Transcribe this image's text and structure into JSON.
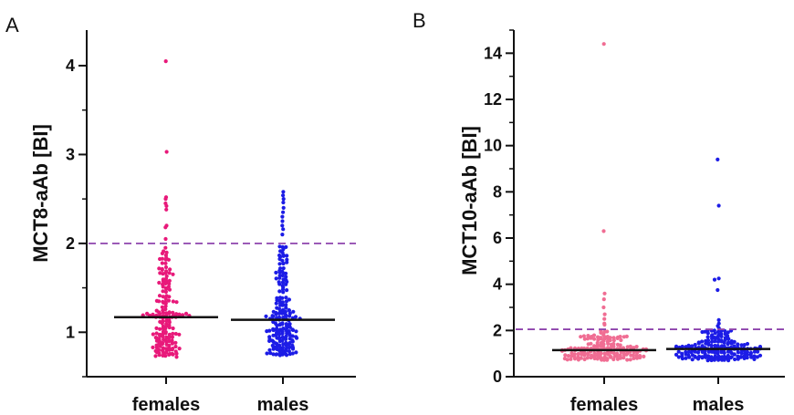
{
  "chart_data": [
    {
      "panel_label": "A",
      "type": "scatter",
      "subtype": "dot-strip (beeswarm) with median line",
      "ylabel": "MCT8-aAb [BI]",
      "ylim": [
        0.5,
        4.4
      ],
      "yticks": [
        1,
        2,
        3,
        4
      ],
      "y_minor_tick_step": 0.5,
      "categories": [
        "females",
        "males"
      ],
      "threshold": 2.0,
      "threshold_style": "dashed purple line",
      "colors": {
        "females": "#e8197a",
        "males": "#1c1ce6",
        "threshold": "#8e44ad",
        "axis": "#111111"
      },
      "series": [
        {
          "category_index": 0,
          "median": 1.17,
          "points_summary": {
            "n_approx": 180,
            "min": 0.72,
            "max": 4.05,
            "notable_high": [
              4.05,
              3.03,
              2.52,
              2.5,
              2.45,
              2.42,
              2.38,
              2.2,
              2.18,
              2.05
            ]
          }
        },
        {
          "category_index": 1,
          "median": 1.14,
          "points_summary": {
            "n_approx": 200,
            "min": 0.74,
            "max": 2.58,
            "notable_high": [
              2.58,
              2.54,
              2.5,
              2.46,
              2.4,
              2.35,
              2.3,
              2.25,
              2.2,
              2.16,
              2.1
            ]
          }
        }
      ]
    },
    {
      "panel_label": "B",
      "type": "scatter",
      "subtype": "dot-strip (beeswarm) with median line",
      "ylabel": "MCT10-aAb [BI]",
      "ylim": [
        0,
        15
      ],
      "yticks": [
        0,
        2,
        4,
        6,
        8,
        10,
        12,
        14
      ],
      "y_minor_tick_step": 1,
      "categories": [
        "females",
        "males"
      ],
      "threshold": 2.05,
      "threshold_style": "dashed purple line",
      "colors": {
        "females": "#f06d93",
        "males": "#1c1ce6",
        "threshold": "#8e44ad",
        "axis": "#111111"
      },
      "series": [
        {
          "category_index": 0,
          "median": 1.15,
          "points_summary": {
            "n_approx": 180,
            "min": 0.72,
            "max": 14.4,
            "notable_high": [
              14.4,
              6.3,
              3.6,
              3.35,
              3.0,
              2.7,
              2.5,
              2.3,
              2.25
            ]
          }
        },
        {
          "category_index": 1,
          "median": 1.2,
          "points_summary": {
            "n_approx": 200,
            "min": 0.7,
            "max": 9.4,
            "notable_high": [
              9.4,
              7.4,
              4.25,
              4.2,
              3.75,
              2.45,
              2.3,
              2.2,
              2.1
            ]
          }
        }
      ]
    }
  ]
}
